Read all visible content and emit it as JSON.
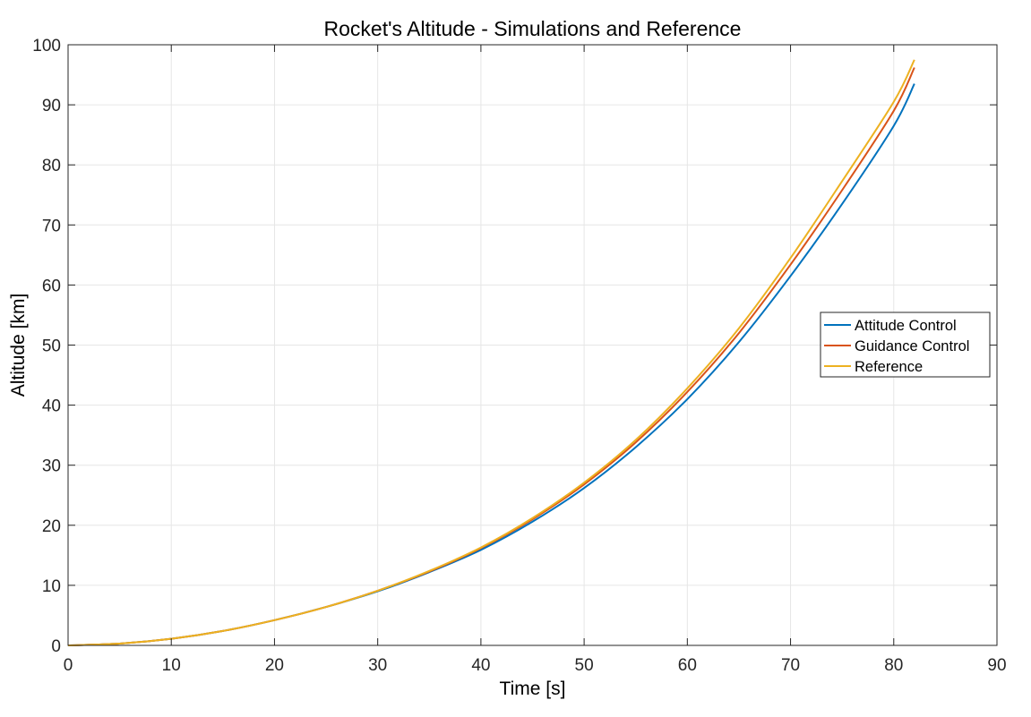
{
  "chart_data": {
    "type": "line",
    "title": "Rocket's Altitude - Simulations and Reference",
    "xlabel": "Time [s]",
    "ylabel": "Altitude [km]",
    "xlim": [
      0,
      90
    ],
    "ylim": [
      0,
      100
    ],
    "xticks": [
      0,
      10,
      20,
      30,
      40,
      50,
      60,
      70,
      80,
      90
    ],
    "yticks": [
      0,
      10,
      20,
      30,
      40,
      50,
      60,
      70,
      80,
      90,
      100
    ],
    "grid": true,
    "legend_position": "right",
    "series": [
      {
        "name": "Attitude Control",
        "color": "#0072BD",
        "x": [
          0,
          5,
          10,
          15,
          20,
          25,
          30,
          35,
          40,
          45,
          50,
          55,
          60,
          65,
          70,
          75,
          80,
          82
        ],
        "y": [
          0,
          0.3,
          1.1,
          2.4,
          4.2,
          6.4,
          9.0,
          12.2,
          15.9,
          20.6,
          26.2,
          33.0,
          41.0,
          50.5,
          61.5,
          73.5,
          86.5,
          93.5
        ]
      },
      {
        "name": "Guidance Control",
        "color": "#D95319",
        "x": [
          0,
          5,
          10,
          15,
          20,
          25,
          30,
          35,
          40,
          45,
          50,
          55,
          60,
          65,
          70,
          75,
          80,
          82
        ],
        "y": [
          0,
          0.3,
          1.1,
          2.4,
          4.2,
          6.4,
          9.1,
          12.3,
          16.2,
          21.0,
          26.8,
          33.8,
          42.2,
          52.0,
          63.4,
          75.8,
          89.0,
          96.2
        ]
      },
      {
        "name": "Reference",
        "color": "#EDB120",
        "x": [
          0,
          5,
          10,
          15,
          20,
          25,
          30,
          35,
          40,
          45,
          50,
          55,
          60,
          65,
          70,
          75,
          80,
          82
        ],
        "y": [
          0,
          0.3,
          1.1,
          2.4,
          4.2,
          6.4,
          9.1,
          12.4,
          16.3,
          21.2,
          27.1,
          34.2,
          42.8,
          52.8,
          64.5,
          77.3,
          90.5,
          97.5
        ]
      }
    ]
  }
}
